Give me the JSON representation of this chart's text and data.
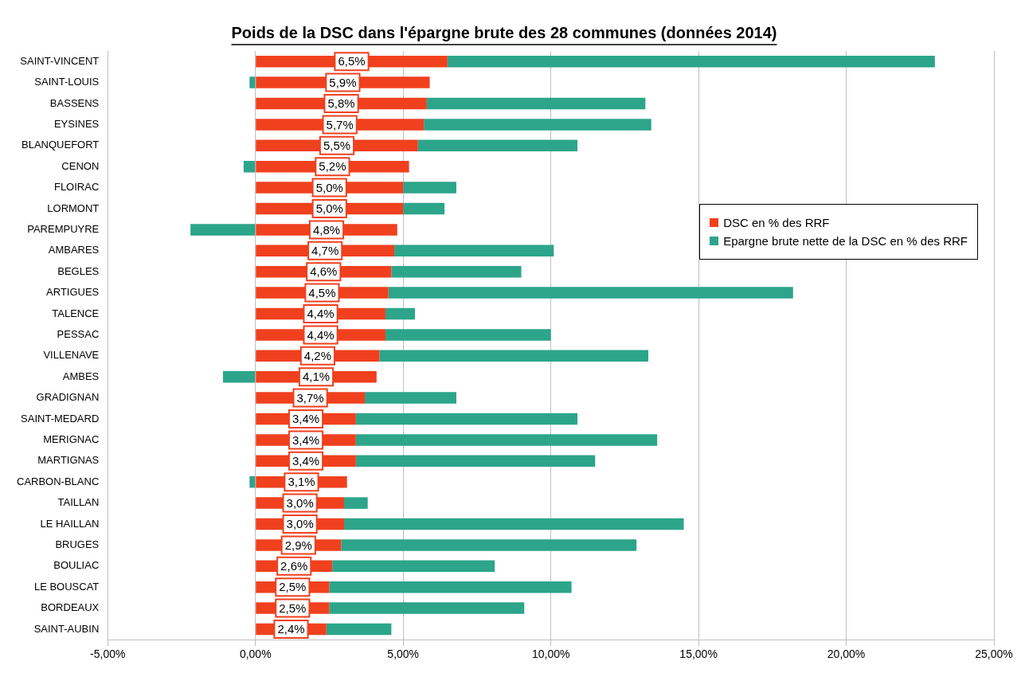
{
  "chart_data": {
    "type": "bar",
    "orientation": "horizontal",
    "stacked": true,
    "title": "Poids de la DSC dans l'épargne brute des 28 communes (données 2014)",
    "categories": [
      "SAINT-VINCENT",
      "SAINT-LOUIS",
      "BASSENS",
      "EYSINES",
      "BLANQUEFORT",
      "CENON",
      "FLOIRAC",
      "LORMONT",
      "PAREMPUYRE",
      "AMBARES",
      "BEGLES",
      "ARTIGUES",
      "TALENCE",
      "PESSAC",
      "VILLENAVE",
      "AMBES",
      "GRADIGNAN",
      "SAINT-MEDARD",
      "MERIGNAC",
      "MARTIGNAS",
      "CARBON-BLANC",
      "TAILLAN",
      "LE HAILLAN",
      "BRUGES",
      "BOULIAC",
      "LE BOUSCAT",
      "BORDEAUX",
      "SAINT-AUBIN"
    ],
    "series": [
      {
        "name": "DSC en % des RRF",
        "color": "#f0401e",
        "values": [
          6.5,
          5.9,
          5.8,
          5.7,
          5.5,
          5.2,
          5.0,
          5.0,
          4.8,
          4.7,
          4.6,
          4.5,
          4.4,
          4.4,
          4.2,
          4.1,
          3.7,
          3.4,
          3.4,
          3.4,
          3.1,
          3.0,
          3.0,
          2.9,
          2.6,
          2.5,
          2.5,
          2.4
        ],
        "value_labels": [
          "6,5%",
          "5,9%",
          "5,8%",
          "5,7%",
          "5,5%",
          "5,2%",
          "5,0%",
          "5,0%",
          "4,8%",
          "4,7%",
          "4,6%",
          "4,5%",
          "4,4%",
          "4,4%",
          "4,2%",
          "4,1%",
          "3,7%",
          "3,4%",
          "3,4%",
          "3,4%",
          "3,1%",
          "3,0%",
          "3,0%",
          "2,9%",
          "2,6%",
          "2,5%",
          "2,5%",
          "2,4%"
        ]
      },
      {
        "name": "Epargne brute nette de la DSC en % des RRF",
        "color": "#2ca58a",
        "values": [
          16.5,
          -0.2,
          7.4,
          7.7,
          5.4,
          -0.4,
          1.8,
          1.4,
          -2.2,
          5.4,
          4.4,
          13.7,
          1.0,
          5.6,
          9.1,
          -1.1,
          3.1,
          7.5,
          10.2,
          8.1,
          -0.2,
          0.8,
          11.5,
          10.0,
          5.5,
          8.2,
          6.6,
          2.2
        ]
      }
    ],
    "xlim": [
      -5,
      25
    ],
    "xticks": [
      {
        "value": -5,
        "label": "-5,00%"
      },
      {
        "value": 0,
        "label": "0,00%"
      },
      {
        "value": 5,
        "label": "5,00%"
      },
      {
        "value": 10,
        "label": "10,00%"
      },
      {
        "value": 15,
        "label": "15,00%"
      },
      {
        "value": 20,
        "label": "20,00%"
      },
      {
        "value": 25,
        "label": "25,00%"
      }
    ],
    "grid": "x",
    "legend": "right"
  }
}
